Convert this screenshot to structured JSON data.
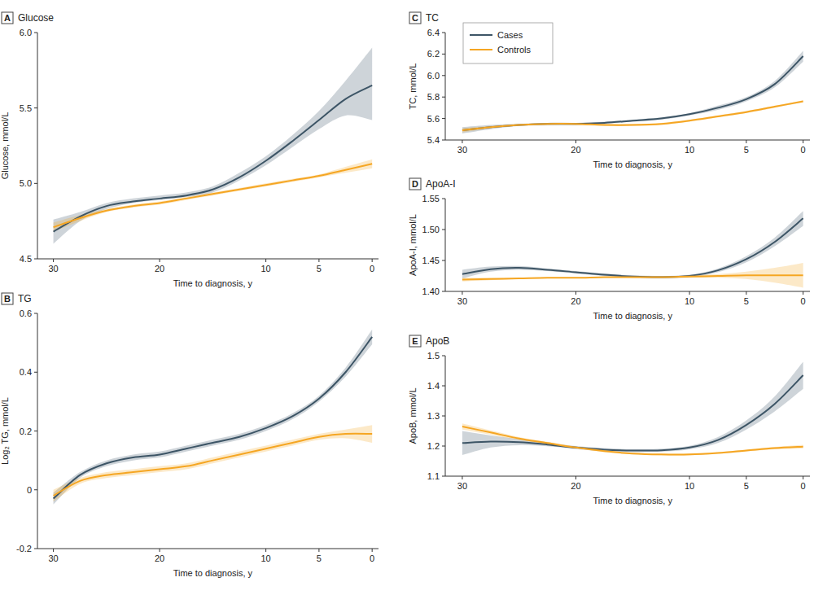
{
  "chart_data": [
    {
      "type": "line",
      "panel": "A",
      "title": "Glucose",
      "x_label": "Time to diagnosis, y",
      "y_label": "Glucose, mmol/L",
      "x": [
        30,
        27.5,
        25,
        22.5,
        20,
        17.5,
        15,
        12.5,
        10,
        7.5,
        5,
        2.5,
        0
      ],
      "xlim": [
        31.5,
        -0.6
      ],
      "xticks": [
        30,
        20,
        10,
        5,
        0
      ],
      "ylim": [
        4.5,
        6.0
      ],
      "yticks": [
        4.5,
        {
          "value": 5,
          "label": "5.0"
        },
        5.5,
        {
          "value": 6,
          "label": "6.0"
        }
      ],
      "grid": false,
      "series": [
        {
          "name": "Cases",
          "color": "#3d5566",
          "values": [
            4.68,
            4.78,
            4.85,
            4.88,
            4.9,
            4.92,
            4.96,
            5.04,
            5.15,
            5.28,
            5.42,
            5.56,
            5.65
          ],
          "lower": [
            4.6,
            4.75,
            4.83,
            4.87,
            4.89,
            4.91,
            4.94,
            5.02,
            5.12,
            5.24,
            5.36,
            5.45,
            5.42
          ],
          "upper": [
            4.76,
            4.81,
            4.87,
            4.9,
            4.92,
            4.94,
            4.98,
            5.07,
            5.18,
            5.32,
            5.48,
            5.68,
            5.9
          ]
        },
        {
          "name": "Controls",
          "color": "#f5a623",
          "values": [
            4.71,
            4.77,
            4.82,
            4.85,
            4.87,
            4.9,
            4.93,
            4.96,
            4.99,
            5.02,
            5.05,
            5.09,
            5.13
          ],
          "lower": [
            4.68,
            4.75,
            4.81,
            4.84,
            4.86,
            4.89,
            4.92,
            4.95,
            4.98,
            5.01,
            5.04,
            5.07,
            5.1
          ],
          "upper": [
            4.74,
            4.79,
            4.83,
            4.86,
            4.88,
            4.91,
            4.94,
            4.97,
            5.0,
            5.03,
            5.06,
            5.11,
            5.16
          ]
        }
      ]
    },
    {
      "type": "line",
      "panel": "B",
      "title": "TG",
      "x_label": "Time to diagnosis, y",
      "y_label": "Log₂ TG, mmol/L",
      "x": [
        30,
        27.5,
        25,
        22.5,
        20,
        17.5,
        15,
        12.5,
        10,
        7.5,
        5,
        2.5,
        0
      ],
      "xlim": [
        31.5,
        -0.6
      ],
      "xticks": [
        30,
        20,
        10,
        5,
        0
      ],
      "ylim": [
        -0.2,
        0.6
      ],
      "yticks": [
        -0.2,
        0,
        0.2,
        0.4,
        0.6
      ],
      "grid": false,
      "series": [
        {
          "name": "Cases",
          "color": "#3d5566",
          "values": [
            -0.03,
            0.05,
            0.09,
            0.11,
            0.12,
            0.14,
            0.16,
            0.18,
            0.21,
            0.25,
            0.31,
            0.4,
            0.52
          ],
          "lower": [
            -0.05,
            0.04,
            0.08,
            0.1,
            0.11,
            0.13,
            0.15,
            0.17,
            0.2,
            0.24,
            0.3,
            0.385,
            0.495
          ],
          "upper": [
            -0.01,
            0.06,
            0.1,
            0.12,
            0.13,
            0.15,
            0.17,
            0.19,
            0.22,
            0.26,
            0.32,
            0.415,
            0.545
          ]
        },
        {
          "name": "Controls",
          "color": "#f5a623",
          "values": [
            -0.02,
            0.03,
            0.05,
            0.06,
            0.07,
            0.08,
            0.1,
            0.12,
            0.14,
            0.16,
            0.18,
            0.19,
            0.19
          ],
          "lower": [
            -0.04,
            0.02,
            0.04,
            0.05,
            0.06,
            0.07,
            0.09,
            0.11,
            0.13,
            0.15,
            0.17,
            0.175,
            0.16
          ],
          "upper": [
            0.0,
            0.04,
            0.06,
            0.07,
            0.08,
            0.09,
            0.11,
            0.13,
            0.15,
            0.17,
            0.19,
            0.205,
            0.22
          ]
        }
      ]
    },
    {
      "type": "line",
      "panel": "C",
      "title": "TC",
      "x_label": "Time to diagnosis, y",
      "y_label": "TC, mmol/L",
      "x": [
        30,
        27.5,
        25,
        22.5,
        20,
        17.5,
        15,
        12.5,
        10,
        7.5,
        5,
        2.5,
        0
      ],
      "xlim": [
        31.5,
        -0.6
      ],
      "xticks": [
        30,
        20,
        10,
        5,
        0
      ],
      "ylim": [
        5.4,
        6.4
      ],
      "yticks": [
        5.4,
        5.6,
        5.8,
        {
          "value": 6,
          "label": "6.0"
        },
        6.2,
        6.4
      ],
      "grid": false,
      "legend": "upper left",
      "series": [
        {
          "name": "Cases",
          "color": "#3d5566",
          "values": [
            5.49,
            5.52,
            5.54,
            5.55,
            5.55,
            5.56,
            5.58,
            5.6,
            5.64,
            5.7,
            5.78,
            5.92,
            6.18
          ],
          "lower": [
            5.46,
            5.5,
            5.53,
            5.54,
            5.54,
            5.55,
            5.57,
            5.59,
            5.63,
            5.68,
            5.76,
            5.89,
            6.13
          ],
          "upper": [
            5.52,
            5.54,
            5.55,
            5.56,
            5.56,
            5.57,
            5.59,
            5.61,
            5.65,
            5.72,
            5.8,
            5.95,
            6.23
          ]
        },
        {
          "name": "Controls",
          "color": "#f5a623",
          "values": [
            5.49,
            5.52,
            5.54,
            5.55,
            5.55,
            5.54,
            5.54,
            5.55,
            5.58,
            5.62,
            5.66,
            5.71,
            5.76
          ],
          "lower": [
            5.47,
            5.51,
            5.53,
            5.54,
            5.54,
            5.53,
            5.53,
            5.54,
            5.57,
            5.61,
            5.65,
            5.7,
            5.75
          ],
          "upper": [
            5.51,
            5.53,
            5.55,
            5.56,
            5.56,
            5.55,
            5.55,
            5.56,
            5.59,
            5.63,
            5.67,
            5.72,
            5.77
          ]
        }
      ]
    },
    {
      "type": "line",
      "panel": "D",
      "title": "ApoA-I",
      "x_label": "Time to diagnosis, y",
      "y_label": "ApoA-I, mmol/L",
      "x": [
        30,
        27.5,
        25,
        22.5,
        20,
        17.5,
        15,
        12.5,
        10,
        7.5,
        5,
        2.5,
        0
      ],
      "xlim": [
        31.5,
        -0.6
      ],
      "xticks": [
        30,
        20,
        10,
        5,
        0
      ],
      "ylim": [
        1.4,
        1.55
      ],
      "yticks": [
        {
          "value": 1.4,
          "label": "1.40"
        },
        1.45,
        {
          "value": 1.5,
          "label": "1.50"
        },
        1.55
      ],
      "grid": false,
      "series": [
        {
          "name": "Cases",
          "color": "#3d5566",
          "values": [
            1.428,
            1.436,
            1.438,
            1.435,
            1.431,
            1.427,
            1.424,
            1.423,
            1.425,
            1.434,
            1.452,
            1.48,
            1.518
          ],
          "lower": [
            1.421,
            1.432,
            1.435,
            1.433,
            1.429,
            1.425,
            1.422,
            1.421,
            1.423,
            1.431,
            1.447,
            1.473,
            1.506
          ],
          "upper": [
            1.435,
            1.44,
            1.441,
            1.437,
            1.433,
            1.429,
            1.426,
            1.425,
            1.427,
            1.437,
            1.457,
            1.487,
            1.53
          ]
        },
        {
          "name": "Controls",
          "color": "#f5a623",
          "values": [
            1.419,
            1.42,
            1.421,
            1.422,
            1.422,
            1.423,
            1.423,
            1.423,
            1.424,
            1.425,
            1.426,
            1.426,
            1.426
          ],
          "lower": [
            1.416,
            1.418,
            1.42,
            1.421,
            1.421,
            1.422,
            1.422,
            1.422,
            1.422,
            1.422,
            1.42,
            1.414,
            1.406
          ],
          "upper": [
            1.422,
            1.422,
            1.422,
            1.423,
            1.423,
            1.424,
            1.424,
            1.424,
            1.426,
            1.428,
            1.432,
            1.438,
            1.446
          ]
        }
      ]
    },
    {
      "type": "line",
      "panel": "E",
      "title": "ApoB",
      "x_label": "Time to diagnosis, y",
      "y_label": "ApoB, mmol/L",
      "x": [
        30,
        27.5,
        25,
        22.5,
        20,
        17.5,
        15,
        12.5,
        10,
        7.5,
        5,
        2.5,
        0
      ],
      "xlim": [
        31.5,
        -0.6
      ],
      "xticks": [
        30,
        20,
        10,
        5,
        0
      ],
      "ylim": [
        1.1,
        1.5
      ],
      "yticks": [
        1.1,
        1.2,
        1.3,
        1.4,
        1.5
      ],
      "grid": false,
      "series": [
        {
          "name": "Cases",
          "color": "#3d5566",
          "values": [
            1.21,
            1.215,
            1.213,
            1.205,
            1.195,
            1.188,
            1.185,
            1.186,
            1.195,
            1.22,
            1.27,
            1.34,
            1.435
          ],
          "lower": [
            1.17,
            1.195,
            1.203,
            1.199,
            1.19,
            1.183,
            1.18,
            1.181,
            1.189,
            1.21,
            1.255,
            1.315,
            1.39
          ],
          "upper": [
            1.25,
            1.235,
            1.223,
            1.211,
            1.2,
            1.193,
            1.19,
            1.191,
            1.201,
            1.23,
            1.285,
            1.365,
            1.48
          ]
        },
        {
          "name": "Controls",
          "color": "#f5a623",
          "values": [
            1.265,
            1.245,
            1.225,
            1.21,
            1.195,
            1.183,
            1.175,
            1.172,
            1.172,
            1.177,
            1.185,
            1.193,
            1.198
          ],
          "lower": [
            1.255,
            1.238,
            1.22,
            1.206,
            1.192,
            1.18,
            1.172,
            1.169,
            1.169,
            1.174,
            1.182,
            1.189,
            1.192
          ],
          "upper": [
            1.275,
            1.252,
            1.23,
            1.214,
            1.198,
            1.186,
            1.178,
            1.175,
            1.175,
            1.18,
            1.188,
            1.197,
            1.204
          ]
        }
      ]
    }
  ]
}
